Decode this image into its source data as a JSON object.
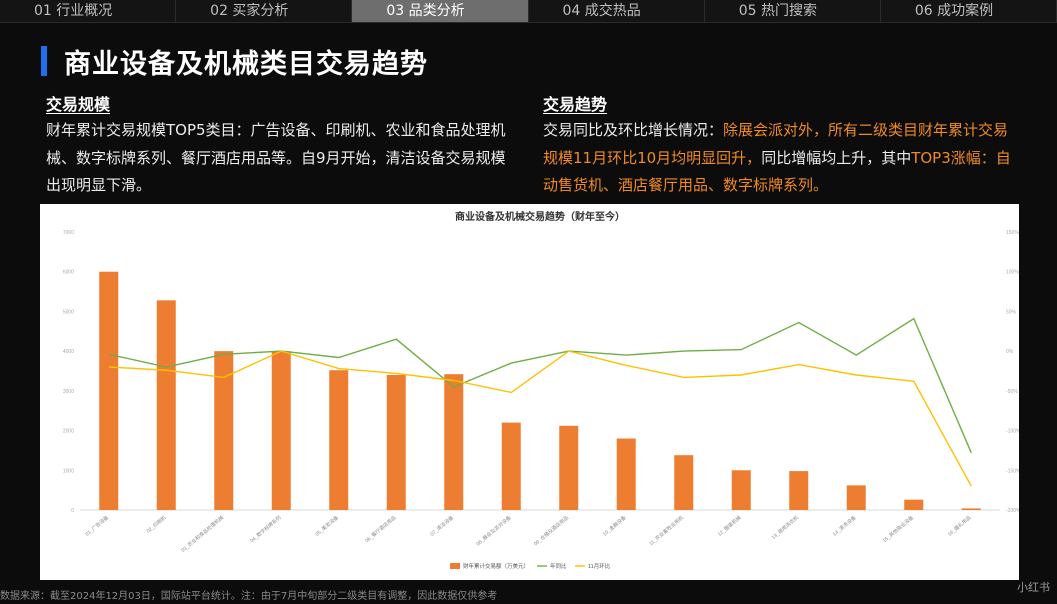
{
  "tabs": [
    {
      "label": "01 行业概况"
    },
    {
      "label": "02 买家分析"
    },
    {
      "label": "03 品类分析"
    },
    {
      "label": "04 成交热品"
    },
    {
      "label": "05 热门搜索"
    },
    {
      "label": "06 成功案例"
    }
  ],
  "active_tab": 2,
  "page_title": "商业设备及机械类目交易趋势",
  "left": {
    "title": "交易规模",
    "text": "财年累计交易规模TOP5类目：广告设备、印刷机、农业和食品处理机械、数字标牌系列、餐厅酒店用品等。自9月开始，清洁设备交易规模出现明显下滑。"
  },
  "right": {
    "title": "交易趋势",
    "text_plain": "交易同比及环比增长情况：",
    "text_highlight": "除展会派对外，所有二级类目财年累计交易规模11月环比10月均明显回升，",
    "text_plain2": "同比增幅均上升，其中",
    "text_highlight2": "TOP3涨幅：自动售货机、酒店餐厅用品、数字标牌系列。"
  },
  "colors": {
    "accent": "#1e6ff0",
    "bar": "#ed7d31",
    "yoy": "#70ad47",
    "mom": "#ffc000"
  },
  "chart_data": {
    "type": "bar",
    "title": "商业设备及机械交易趋势（财年至今）",
    "categories": [
      "01_广告设备",
      "02_印刷机",
      "03_农业和食品处理机械",
      "04_数字标牌系列",
      "05_美发设备",
      "06_餐厅酒店用品",
      "07_清洁设备",
      "08_展会及派对设备",
      "09_仓储及酒店用品",
      "10_金融设备",
      "11_农业畜牧业用机",
      "12_服装机械",
      "13_商用洗衣机",
      "14_清洗设备",
      "15_其他商业设备",
      "16_婚礼用品"
    ],
    "y_left_ticks": [
      "0",
      "1000",
      "2000",
      "3000",
      "4000",
      "5000",
      "6000",
      "7000"
    ],
    "y_right_ticks": [
      "-200%",
      "-150%",
      "-100%",
      "-50%",
      "0%",
      "50%",
      "100%",
      "150%"
    ],
    "ylim_left": [
      0,
      7000
    ],
    "ylim_right": [
      -200,
      150
    ],
    "series": [
      {
        "name": "财年累计交易额（万美元）",
        "type": "bar",
        "axis": "left",
        "values": [
          6000,
          5280,
          4000,
          4000,
          3520,
          3400,
          3420,
          2200,
          2120,
          1800,
          1380,
          1000,
          980,
          620,
          260,
          40
        ]
      },
      {
        "name": "年同比",
        "type": "line",
        "axis": "right",
        "values": [
          -4,
          -20,
          -4,
          0,
          -8,
          15,
          -45,
          -15,
          0,
          -5,
          0,
          2,
          36,
          -5,
          41,
          -128
        ]
      },
      {
        "name": "11月环比",
        "type": "line",
        "axis": "right",
        "values": [
          -20,
          -24,
          -33,
          0,
          -22,
          -28,
          -37,
          -52,
          0,
          -18,
          -33,
          -30,
          -17,
          -30,
          -38,
          -170
        ]
      }
    ],
    "grid": false,
    "legend": "bottom"
  },
  "footer": "数据来源：截至2024年12月03日，国际站平台统计。注：由于7月中旬部分二级类目有调整，因此数据仅供参考",
  "corner_mark": "小红书"
}
